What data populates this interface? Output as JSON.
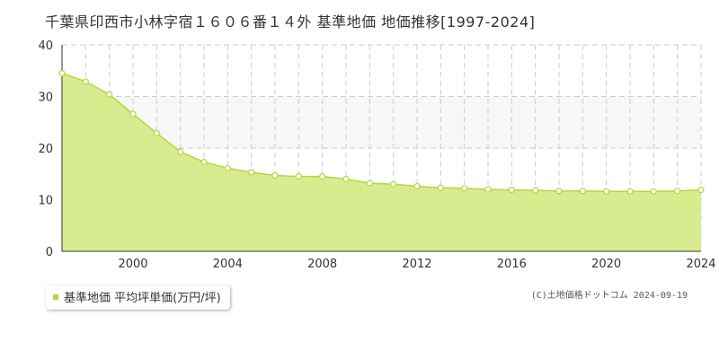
{
  "title": "千葉県印西市小林字宿１６０６番１４外 基準地価 地価推移[1997-2024]",
  "legend_label": "基準地価 平均坪単価(万円/坪)",
  "copyright": "(C)土地価格ドットコム 2024-09-19",
  "colors": {
    "fill": "#d8ec8f",
    "line": "#b5d63f",
    "marker_fill": "#ffffff",
    "grid": "#cccccc",
    "band": "#f7f7f9"
  },
  "chart_data": {
    "type": "area",
    "title": "千葉県印西市小林字宿１６０６番１４外 基準地価 地価推移[1997-2024]",
    "xlabel": "",
    "ylabel": "",
    "xlim": [
      1997,
      2024
    ],
    "ylim": [
      0,
      40
    ],
    "x_ticks": [
      2000,
      2004,
      2008,
      2012,
      2016,
      2020,
      2024
    ],
    "y_ticks": [
      0,
      10,
      20,
      30,
      40
    ],
    "grid": true,
    "legend_position": "bottom-left",
    "series": [
      {
        "name": "基準地価 平均坪単価(万円/坪)",
        "x": [
          1997,
          1998,
          1999,
          2000,
          2001,
          2002,
          2003,
          2004,
          2005,
          2006,
          2007,
          2008,
          2009,
          2010,
          2011,
          2012,
          2013,
          2014,
          2015,
          2016,
          2017,
          2018,
          2019,
          2020,
          2021,
          2022,
          2023,
          2024
        ],
        "values": [
          34.5,
          32.9,
          30.4,
          26.6,
          22.9,
          19.3,
          17.3,
          16.1,
          15.3,
          14.7,
          14.5,
          14.5,
          14.0,
          13.2,
          13.0,
          12.6,
          12.3,
          12.2,
          12.0,
          11.9,
          11.8,
          11.7,
          11.7,
          11.6,
          11.6,
          11.6,
          11.7,
          11.9
        ]
      }
    ]
  }
}
